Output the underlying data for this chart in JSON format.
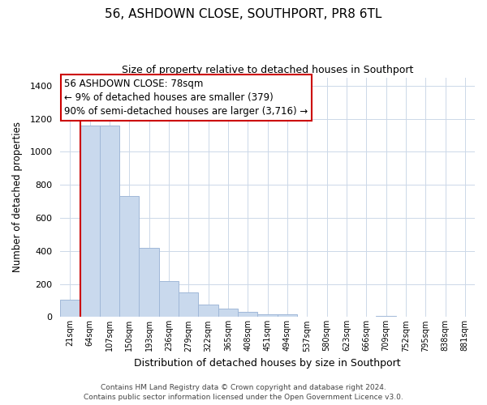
{
  "title": "56, ASHDOWN CLOSE, SOUTHPORT, PR8 6TL",
  "subtitle": "Size of property relative to detached houses in Southport",
  "xlabel": "Distribution of detached houses by size in Southport",
  "ylabel": "Number of detached properties",
  "bar_labels": [
    "21sqm",
    "64sqm",
    "107sqm",
    "150sqm",
    "193sqm",
    "236sqm",
    "279sqm",
    "322sqm",
    "365sqm",
    "408sqm",
    "451sqm",
    "494sqm",
    "537sqm",
    "580sqm",
    "623sqm",
    "666sqm",
    "709sqm",
    "752sqm",
    "795sqm",
    "838sqm",
    "881sqm"
  ],
  "bar_heights": [
    107,
    1160,
    1160,
    730,
    420,
    220,
    150,
    75,
    50,
    30,
    18,
    15,
    0,
    0,
    0,
    0,
    5,
    0,
    0,
    0,
    0
  ],
  "bar_color": "#c9d9ed",
  "bar_edge_color": "#a0b8d8",
  "ylim": [
    0,
    1450
  ],
  "yticks": [
    0,
    200,
    400,
    600,
    800,
    1000,
    1200,
    1400
  ],
  "property_line_color": "#cc0000",
  "annotation_title": "56 ASHDOWN CLOSE: 78sqm",
  "annotation_line1": "← 9% of detached houses are smaller (379)",
  "annotation_line2": "90% of semi-detached houses are larger (3,716) →",
  "annotation_box_color": "#ffffff",
  "annotation_box_edge_color": "#cc0000",
  "footer_line1": "Contains HM Land Registry data © Crown copyright and database right 2024.",
  "footer_line2": "Contains public sector information licensed under the Open Government Licence v3.0.",
  "background_color": "#ffffff",
  "grid_color": "#ccd8e8"
}
